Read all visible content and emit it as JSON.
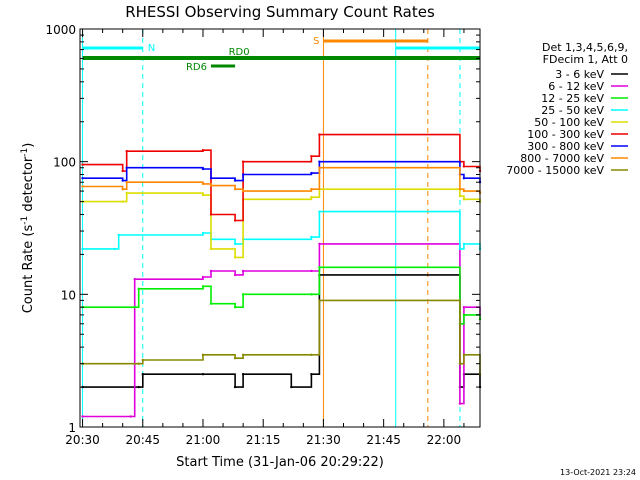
{
  "chart_data": {
    "type": "line",
    "title": "RHESSI Observing Summary Count Rates",
    "xlabel": "Start Time (31-Jan-06 20:29:22)",
    "ylabel": "Count Rate (s",
    "ylabel_sup": "-1",
    "ylabel_tail": " detector",
    "ylabel_tail_sup": "-1",
    "ylabel_close": ")",
    "y_scale": "log",
    "ylim": [
      1,
      1000
    ],
    "x_range": [
      "20:29:22",
      "22:09"
    ],
    "x_ticks": [
      "20:30",
      "20:45",
      "21:00",
      "21:15",
      "21:30",
      "21:45",
      "22:00"
    ],
    "y_ticks": [
      "1",
      "10",
      "100",
      "1000"
    ],
    "legend": {
      "placement": "right",
      "header": [
        "Det 1,3,4,5,6,9,",
        "FDecim 1, Att 0"
      ],
      "entries": [
        {
          "label": "3 - 6 keV",
          "color": "#000000"
        },
        {
          "label": "6 - 12 keV",
          "color": "#dd00dd"
        },
        {
          "label": "12 - 25 keV",
          "color": "#00ee00"
        },
        {
          "label": "25 - 50 keV",
          "color": "#00ffff"
        },
        {
          "label": "50 - 100 keV",
          "color": "#dddd00"
        },
        {
          "label": "100 - 300 keV",
          "color": "#ee0000"
        },
        {
          "label": "300 - 800 keV",
          "color": "#0000ff"
        },
        {
          "label": "800 - 7000 keV",
          "color": "#ff8800"
        },
        {
          "label": "7000 - 15000 keV",
          "color": "#888800"
        }
      ]
    },
    "series": [
      {
        "name": "3 - 6 keV",
        "color": "#000000",
        "x": [
          "20:30",
          "20:44",
          "20:45",
          "21:00",
          "21:08",
          "21:10",
          "21:22",
          "21:27",
          "21:29",
          "22:04",
          "22:05",
          "22:09"
        ],
        "y": [
          2,
          2,
          2.5,
          2.5,
          2,
          2.5,
          2,
          2.5,
          14,
          2,
          2.5,
          2
        ]
      },
      {
        "name": "6 - 12 keV",
        "color": "#dd00dd",
        "x": [
          "20:30",
          "20:42",
          "20:43",
          "21:00",
          "21:02",
          "21:08",
          "21:10",
          "21:27",
          "21:29",
          "22:04",
          "22:05",
          "22:09"
        ],
        "y": [
          1.2,
          1.2,
          13,
          13.5,
          15,
          14,
          15,
          15,
          24,
          1.5,
          8,
          7
        ]
      },
      {
        "name": "12 - 25 keV",
        "color": "#00ee00",
        "x": [
          "20:30",
          "20:43",
          "20:44",
          "21:00",
          "21:02",
          "21:08",
          "21:10",
          "21:27",
          "21:29",
          "22:04",
          "22:05",
          "22:09"
        ],
        "y": [
          8,
          8,
          11,
          11.5,
          8.5,
          8,
          10,
          10,
          16,
          6,
          7,
          6.5
        ]
      },
      {
        "name": "25 - 50 keV",
        "color": "#00ffff",
        "x": [
          "20:30",
          "20:38",
          "20:39",
          "21:00",
          "21:02",
          "21:08",
          "21:10",
          "21:27",
          "21:29",
          "22:04",
          "22:05",
          "22:09"
        ],
        "y": [
          22,
          22,
          28,
          29,
          26,
          24,
          26,
          27,
          42,
          22,
          24,
          22
        ]
      },
      {
        "name": "50 - 100 keV",
        "color": "#dddd00",
        "x": [
          "20:30",
          "20:40",
          "20:41",
          "21:00",
          "21:02",
          "21:08",
          "21:10",
          "21:27",
          "21:29",
          "22:04",
          "22:05",
          "22:09"
        ],
        "y": [
          50,
          50,
          58,
          56,
          22,
          19,
          52,
          54,
          62,
          55,
          52,
          50
        ]
      },
      {
        "name": "100 - 300 keV",
        "color": "#ee0000",
        "x": [
          "20:30",
          "20:40",
          "20:41",
          "21:00",
          "21:02",
          "21:08",
          "21:10",
          "21:27",
          "21:29",
          "22:04",
          "22:05",
          "22:09"
        ],
        "y": [
          95,
          85,
          120,
          122,
          40,
          36,
          100,
          110,
          160,
          100,
          92,
          85
        ]
      },
      {
        "name": "300 - 800 keV",
        "color": "#0000ff",
        "x": [
          "20:30",
          "20:40",
          "20:41",
          "21:00",
          "21:02",
          "21:08",
          "21:10",
          "21:27",
          "21:29",
          "22:04",
          "22:05",
          "22:09"
        ],
        "y": [
          75,
          72,
          90,
          88,
          75,
          72,
          80,
          82,
          100,
          80,
          75,
          70
        ]
      },
      {
        "name": "800 - 7000 keV",
        "color": "#ff8800",
        "x": [
          "20:30",
          "20:40",
          "20:41",
          "21:00",
          "21:02",
          "21:08",
          "21:10",
          "21:27",
          "21:29",
          "22:04",
          "22:05",
          "22:09"
        ],
        "y": [
          65,
          62,
          70,
          68,
          66,
          62,
          60,
          62,
          90,
          62,
          60,
          58
        ]
      },
      {
        "name": "7000 - 15000 keV",
        "color": "#888800",
        "x": [
          "20:30",
          "20:44",
          "20:45",
          "21:00",
          "21:08",
          "21:10",
          "21:27",
          "21:29",
          "22:04",
          "22:05",
          "22:09"
        ],
        "y": [
          3,
          3,
          3.2,
          3.5,
          3.3,
          3.5,
          3.5,
          9,
          3,
          3.5,
          2.5
        ]
      }
    ],
    "annotations": {
      "N": {
        "label": "N",
        "color": "#00ffff",
        "intervals": [
          [
            "20:30",
            "20:45"
          ],
          [
            "21:48",
            "22:09"
          ]
        ]
      },
      "S": {
        "label": "S",
        "color": "#ff8800",
        "intervals": [
          [
            "21:30",
            "21:56"
          ]
        ]
      },
      "RD0": {
        "label": "RD0",
        "color": "#008800",
        "intervals": [
          [
            "20:30",
            "22:09"
          ]
        ]
      },
      "RD6": {
        "label": "RD6",
        "color": "#008800",
        "intervals": [
          [
            "21:02",
            "21:08"
          ]
        ]
      }
    },
    "vlines": [
      {
        "x": "20:30",
        "color": "#00ffff",
        "style": "solid"
      },
      {
        "x": "20:45",
        "color": "#00ffff",
        "style": "dashed"
      },
      {
        "x": "21:30",
        "color": "#ff8800",
        "style": "solid"
      },
      {
        "x": "21:48",
        "color": "#00ffff",
        "style": "solid"
      },
      {
        "x": "21:56",
        "color": "#ff8800",
        "style": "dashed"
      },
      {
        "x": "22:04",
        "color": "#00ffff",
        "style": "dashed"
      }
    ],
    "grid": false
  },
  "footer_date": "13-Oct-2021 23:24"
}
